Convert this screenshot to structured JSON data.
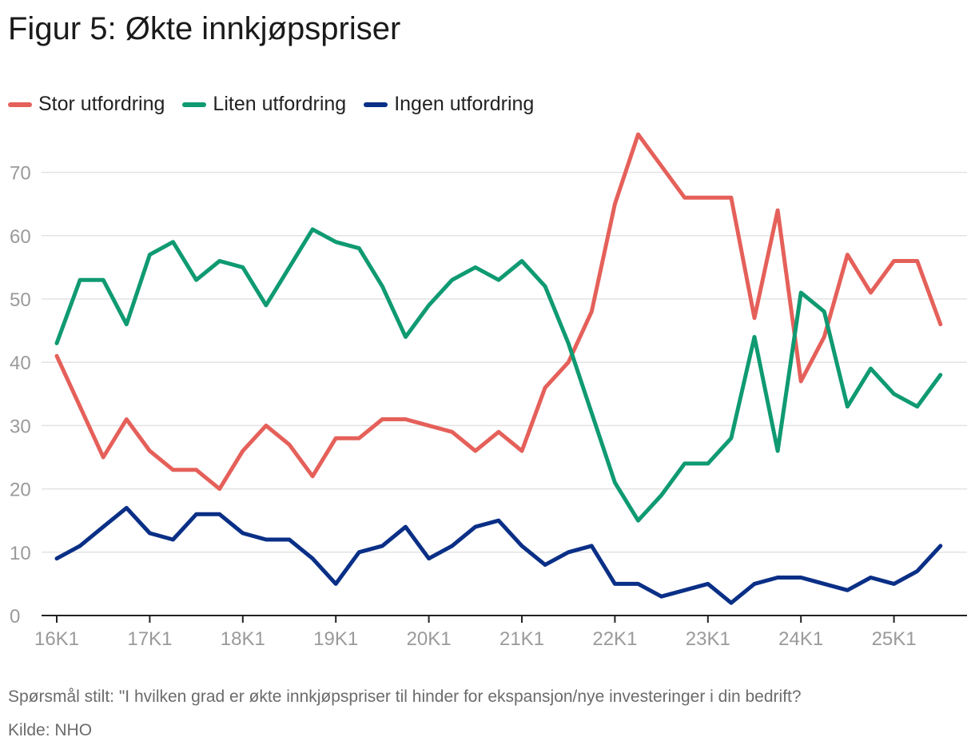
{
  "title": "Figur 5: Økte innkjøpspriser",
  "note": "Spørsmål stilt: \"I hvilken grad er økte innkjøpspriser til hinder for ekspansjon/nye investeringer i din bedrift?",
  "source": "Kilde: NHO",
  "colors": {
    "stor": "#e5605a",
    "liten": "#0f9a72",
    "ingen": "#0a2f86",
    "grid": "#e3e3e3",
    "axis": "#222222"
  },
  "chart_data": {
    "type": "line",
    "x_tick_labels": [
      "16K1",
      "17K1",
      "18K1",
      "19K1",
      "20K1",
      "21K1",
      "22K1",
      "23K1",
      "24K1",
      "25K1"
    ],
    "y_ticks": [
      0,
      10,
      20,
      30,
      40,
      50,
      60,
      70
    ],
    "ylim": [
      0,
      76
    ],
    "legend_position": "top-left",
    "grid": true,
    "series": [
      {
        "name": "Stor utfordring",
        "color": "#e5605a",
        "values": [
          41,
          33,
          25,
          31,
          26,
          23,
          23,
          20,
          26,
          30,
          27,
          22,
          28,
          28,
          31,
          31,
          30,
          29,
          26,
          29,
          26,
          36,
          40,
          48,
          65,
          76,
          71,
          66,
          66,
          66,
          47,
          64,
          37,
          44,
          57,
          51,
          56,
          56,
          46
        ]
      },
      {
        "name": "Liten utfordring",
        "color": "#0f9a72",
        "values": [
          43,
          53,
          53,
          46,
          57,
          59,
          53,
          56,
          55,
          49,
          55,
          61,
          59,
          58,
          52,
          44,
          49,
          53,
          55,
          53,
          56,
          52,
          43,
          32,
          21,
          15,
          19,
          24,
          24,
          28,
          44,
          26,
          51,
          48,
          33,
          39,
          35,
          33,
          38
        ]
      },
      {
        "name": "Ingen utfordring",
        "color": "#0a2f86",
        "values": [
          9,
          11,
          14,
          17,
          13,
          12,
          16,
          16,
          13,
          12,
          12,
          9,
          5,
          10,
          11,
          14,
          9,
          11,
          14,
          15,
          11,
          8,
          10,
          11,
          5,
          5,
          3,
          4,
          5,
          2,
          5,
          6,
          6,
          5,
          4,
          6,
          5,
          7,
          11
        ]
      }
    ]
  }
}
